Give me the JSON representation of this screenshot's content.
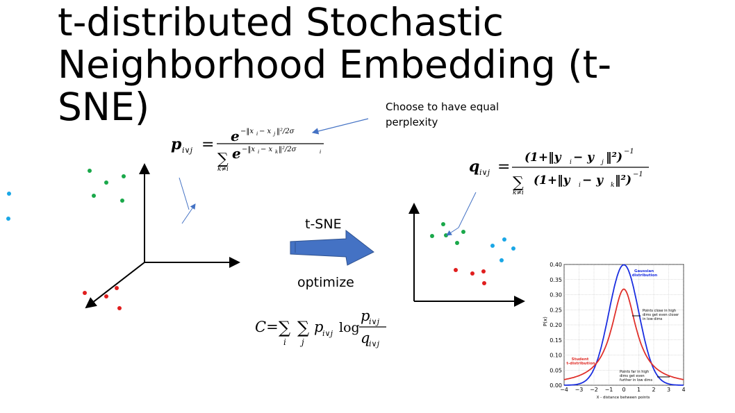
{
  "slide": {
    "title": "t-distributed Stochastic\nNeighborhood Embedding (t-\nSNE)",
    "note": "Choose  to have equal\nperplexity",
    "tsne_label": "t-SNE",
    "optimize_label": "optimize"
  },
  "colors": {
    "cyan_cluster": "#1aa7e6",
    "green_cluster": "#1aa84a",
    "red_cluster": "#e01e1e",
    "arrow": "#4472c4",
    "gaussian": "#1a2ee0",
    "student": "#e0302a"
  },
  "equations": {
    "p_lhs": "p",
    "p_sub": "i∨j",
    "p_num_base": "e",
    "p_num_exp": "−‖x",
    "p_num_exp_i": "i",
    "p_num_exp_mid": " − x",
    "p_num_exp_j": "j",
    "p_num_exp_tail": "‖²/2σ",
    "p_den_sum": "∑",
    "p_den_sub": "k≠i",
    "p_den_exp": "−‖x",
    "p_den_exp_i": "i",
    "p_den_exp_mid": " − x",
    "p_den_exp_k": "k",
    "p_den_exp_tail": "‖²/2σ",
    "p_den_exp_sigma_sub": "i",
    "q_lhs": "q",
    "q_sub": "i∨j",
    "q_num": "(1+‖y",
    "q_num_i": "i",
    "q_num_mid": " − y",
    "q_num_j": "j",
    "q_num_tail": "‖²)",
    "q_num_exp": "−1",
    "q_den_sum": "∑",
    "q_den_sub": "k≠i",
    "q_den": "(1+‖y",
    "q_den_i": "i",
    "q_den_mid": " − y",
    "q_den_k": "k",
    "q_den_tail": "‖²)",
    "q_den_exp": "−1",
    "cost_lhs": "C=",
    "cost_sum1": "∑",
    "cost_sum1_sub": "i",
    "cost_sum2": "∑",
    "cost_sum2_sub": "j",
    "cost_p": "p",
    "cost_p_sub": "i∨j",
    "cost_log": "log",
    "cost_frac_num": "p",
    "cost_frac_num_sub": "i∨j",
    "cost_frac_den": "q",
    "cost_frac_den_sub": "i∨j"
  },
  "high_dim_points": {
    "cyan": [
      [
        -33,
        77
      ],
      [
        -10,
        63
      ],
      [
        -34,
        92
      ],
      [
        -9,
        99
      ]
    ],
    "green": [
      [
        35,
        51
      ],
      [
        76,
        44
      ],
      [
        53,
        70
      ],
      [
        78,
        79
      ],
      [
        29,
        87
      ]
    ],
    "red": [
      [
        22,
        -48
      ],
      [
        68,
        -41
      ],
      [
        53,
        -53
      ],
      [
        72,
        -70
      ]
    ]
  },
  "low_dim_points": {
    "green": [
      [
        42,
        80
      ],
      [
        71,
        69
      ],
      [
        26,
        63
      ],
      [
        46,
        64
      ],
      [
        62,
        53
      ]
    ],
    "cyan": [
      [
        130,
        58
      ],
      [
        143,
        45
      ],
      [
        113,
        49
      ],
      [
        126,
        28
      ]
    ],
    "red": [
      [
        60,
        14
      ],
      [
        84,
        9
      ],
      [
        100,
        12
      ],
      [
        101,
        -5
      ]
    ]
  },
  "chart_data": {
    "type": "line",
    "title": "",
    "xlabel": "X - distance between points",
    "ylabel": "P(x)",
    "xlim": [
      -4,
      4
    ],
    "ylim": [
      0,
      0.4
    ],
    "x_ticks": [
      "−4",
      "−3",
      "−2",
      "−1",
      "0",
      "1",
      "2",
      "3",
      "4"
    ],
    "y_ticks": [
      "0.00",
      "0.05",
      "0.10",
      "0.15",
      "0.20",
      "0.25",
      "0.30",
      "0.35",
      "0.40"
    ],
    "grid": true,
    "series": [
      {
        "name": "Gaussian distribution",
        "color": "#1a2ee0",
        "distribution": "normal",
        "sigma": 1
      },
      {
        "name": "Student t-distribution",
        "color": "#e0302a",
        "distribution": "student-t",
        "dof": 1
      }
    ],
    "annotations": [
      "Points close in high\ndims get even closer\nin low dims",
      "Points far in high\ndims get even\nfurther in low dims"
    ]
  }
}
